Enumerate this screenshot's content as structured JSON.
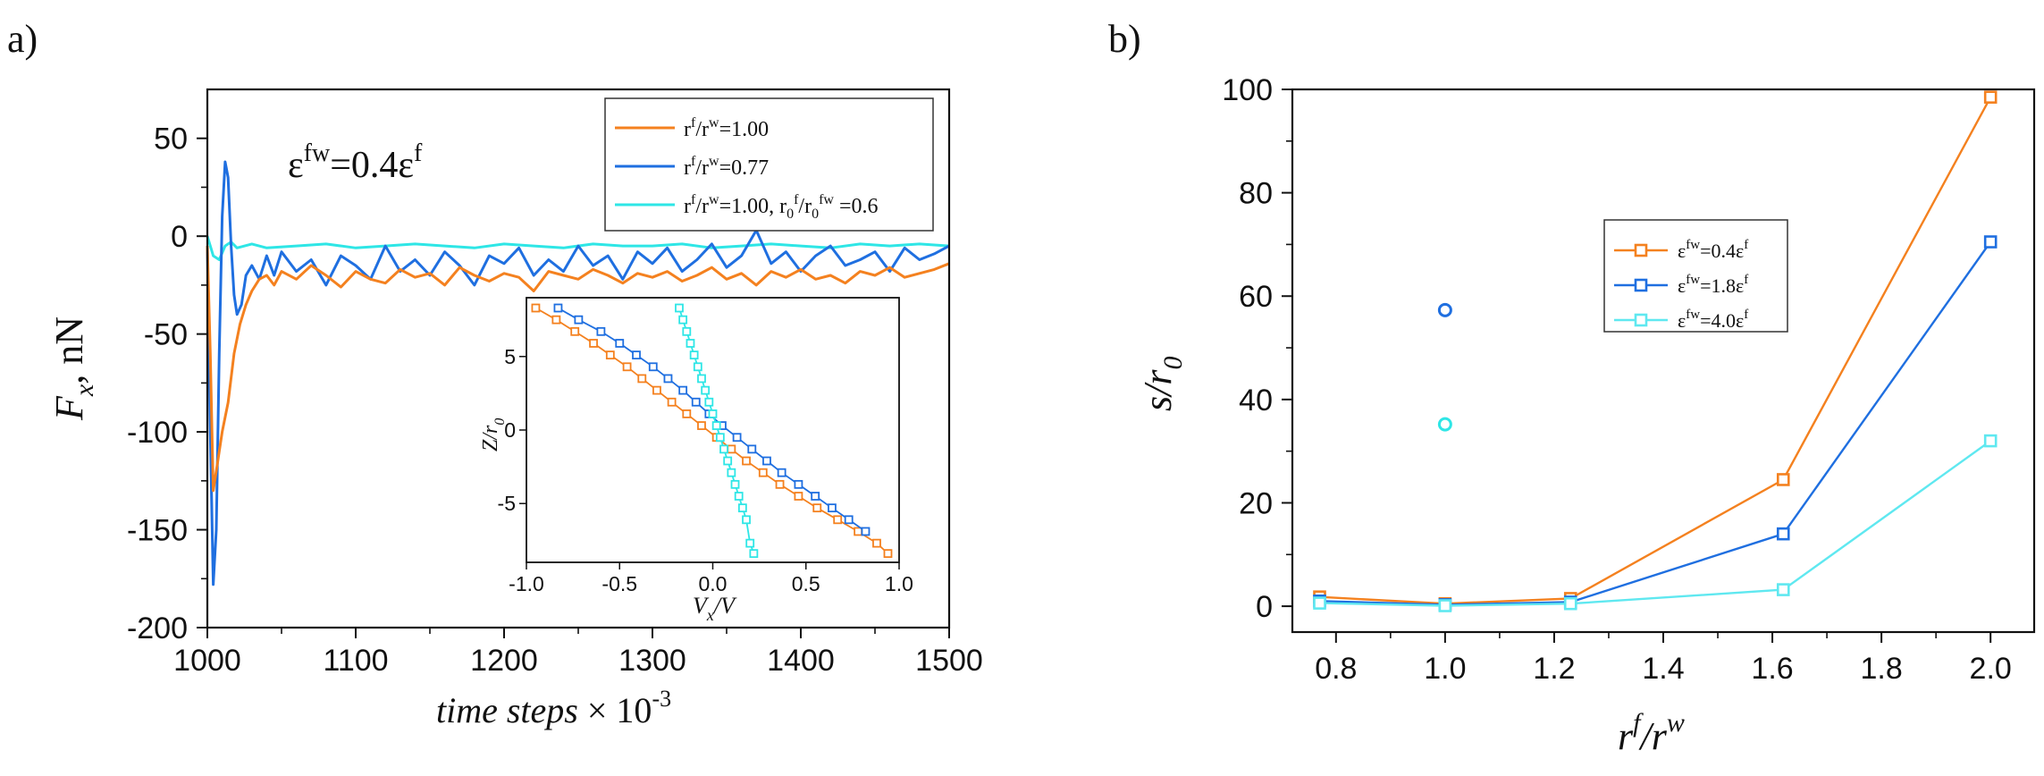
{
  "panel_labels": {
    "a": "a)",
    "b": "b)"
  },
  "chart_data": [
    {
      "id": "a",
      "type": "line",
      "annotation": "ε^fw=0.4ε^f",
      "annotation_parts": {
        "eps": "ε",
        "sup1": "fw",
        "mid": "=0.4ε",
        "sup2": "f"
      },
      "xlabel": "time steps × 10^-3",
      "xlabel_parts": {
        "main": "time steps",
        "times": " × 10",
        "sup": "-3"
      },
      "ylabel": "F_x, nN",
      "ylabel_parts": {
        "F": "F",
        "sub": "x",
        "rest": ", nN"
      },
      "xlim": [
        1000,
        1500
      ],
      "ylim": [
        -200,
        75
      ],
      "xticks": [
        "1000",
        "1100",
        "1200",
        "1300",
        "1400",
        "1500"
      ],
      "yticks": [
        "50",
        "0",
        "-50",
        "-100",
        "-150",
        "-200"
      ],
      "legend": [
        {
          "label": "r^f/r^w=1.00",
          "parts": {
            "a": "r",
            "b": "f",
            "c": "/r",
            "d": "w",
            "e": "=1.00"
          },
          "color": "#f4811f"
        },
        {
          "label": "r^f/r^w=0.77",
          "parts": {
            "a": "r",
            "b": "f",
            "c": "/r",
            "d": "w",
            "e": "=0.77"
          },
          "color": "#1f6fe0"
        },
        {
          "label": "r^f/r^w=1.00, r_0^f/r_0^fw=0.6",
          "parts": {
            "a": "r",
            "b": "f",
            "c": "/r",
            "d": "w",
            "e": "=1.00, r",
            "f": "0",
            "g": "f",
            "h": "/r",
            "i": "0",
            "j": "fw",
            "k": " =0.6"
          },
          "color": "#2ee6e6"
        }
      ],
      "series": [
        {
          "name": "orange",
          "color": "#f4811f",
          "x": [
            1000,
            1002,
            1004,
            1006,
            1008,
            1010,
            1014,
            1018,
            1022,
            1026,
            1030,
            1035,
            1040,
            1045,
            1050,
            1060,
            1070,
            1080,
            1090,
            1100,
            1110,
            1120,
            1130,
            1140,
            1150,
            1160,
            1170,
            1180,
            1190,
            1200,
            1210,
            1220,
            1230,
            1240,
            1250,
            1260,
            1270,
            1280,
            1290,
            1300,
            1310,
            1320,
            1330,
            1340,
            1350,
            1360,
            1370,
            1380,
            1390,
            1400,
            1410,
            1420,
            1430,
            1440,
            1450,
            1460,
            1470,
            1480,
            1490,
            1500
          ],
          "y": [
            -5,
            -60,
            -130,
            -120,
            -110,
            -100,
            -85,
            -60,
            -45,
            -35,
            -28,
            -22,
            -20,
            -25,
            -18,
            -22,
            -15,
            -20,
            -26,
            -18,
            -22,
            -24,
            -17,
            -21,
            -19,
            -25,
            -16,
            -20,
            -23,
            -19,
            -21,
            -28,
            -18,
            -20,
            -22,
            -17,
            -20,
            -24,
            -19,
            -21,
            -18,
            -23,
            -20,
            -16,
            -22,
            -19,
            -25,
            -18,
            -21,
            -17,
            -22,
            -20,
            -24,
            -18,
            -20,
            -16,
            -21,
            -19,
            -17,
            -14
          ]
        },
        {
          "name": "blue",
          "color": "#1f6fe0",
          "x": [
            1000,
            1002,
            1004,
            1006,
            1008,
            1010,
            1012,
            1014,
            1016,
            1018,
            1020,
            1023,
            1026,
            1030,
            1035,
            1040,
            1045,
            1050,
            1060,
            1070,
            1080,
            1090,
            1100,
            1110,
            1120,
            1130,
            1140,
            1150,
            1160,
            1170,
            1180,
            1190,
            1200,
            1210,
            1220,
            1230,
            1240,
            1250,
            1260,
            1270,
            1280,
            1290,
            1300,
            1310,
            1320,
            1330,
            1340,
            1350,
            1360,
            1370,
            1380,
            1390,
            1400,
            1410,
            1420,
            1430,
            1440,
            1450,
            1460,
            1470,
            1480,
            1490,
            1500
          ],
          "y": [
            -5,
            -100,
            -178,
            -150,
            -60,
            10,
            38,
            30,
            -5,
            -30,
            -40,
            -35,
            -20,
            -15,
            -22,
            -10,
            -20,
            -8,
            -18,
            -12,
            -25,
            -10,
            -15,
            -22,
            -5,
            -18,
            -12,
            -20,
            -8,
            -15,
            -25,
            -10,
            -14,
            -6,
            -20,
            -12,
            -18,
            -5,
            -15,
            -10,
            -22,
            -8,
            -14,
            -6,
            -18,
            -12,
            -4,
            -16,
            -10,
            3,
            -14,
            -8,
            -18,
            -10,
            -5,
            -15,
            -12,
            -8,
            -18,
            -6,
            -12,
            -9,
            -5
          ]
        },
        {
          "name": "cyan",
          "color": "#2ee6e6",
          "x": [
            1000,
            1004,
            1008,
            1012,
            1016,
            1020,
            1030,
            1040,
            1060,
            1080,
            1100,
            1120,
            1140,
            1160,
            1180,
            1200,
            1220,
            1240,
            1260,
            1280,
            1300,
            1320,
            1340,
            1360,
            1380,
            1400,
            1420,
            1440,
            1460,
            1480,
            1500
          ],
          "y": [
            0,
            -10,
            -12,
            -5,
            -3,
            -6,
            -4,
            -6,
            -5,
            -4,
            -6,
            -5,
            -4,
            -5,
            -6,
            -4,
            -5,
            -6,
            -4,
            -5,
            -5,
            -4,
            -6,
            -5,
            -4,
            -5,
            -6,
            -4,
            -5,
            -4,
            -5
          ]
        }
      ]
    },
    {
      "id": "a-inset",
      "type": "line",
      "xlabel": "V_x/V",
      "xlabel_parts": {
        "V": "V",
        "sub": "x",
        "rest": "/V"
      },
      "ylabel": "Z/r_0",
      "ylabel_parts": {
        "Z": "Z/r",
        "sub": "0"
      },
      "xlim": [
        -1.0,
        1.0
      ],
      "ylim": [
        -9,
        9
      ],
      "xticks": [
        "-1.0",
        "-0.5",
        "0.0",
        "0.5",
        "1.0"
      ],
      "yticks": [
        "5",
        "0",
        "-5"
      ],
      "series": [
        {
          "name": "orange",
          "color": "#f4811f",
          "x": [
            -0.95,
            -0.84,
            -0.74,
            -0.64,
            -0.55,
            -0.46,
            -0.38,
            -0.3,
            -0.22,
            -0.14,
            -0.06,
            0.02,
            0.1,
            0.18,
            0.27,
            0.36,
            0.46,
            0.56,
            0.67,
            0.78,
            0.88,
            0.94
          ],
          "y": [
            8.3,
            7.5,
            6.7,
            5.9,
            5.1,
            4.3,
            3.5,
            2.7,
            1.9,
            1.1,
            0.3,
            -0.5,
            -1.3,
            -2.1,
            -2.9,
            -3.7,
            -4.5,
            -5.3,
            -6.1,
            -6.9,
            -7.7,
            -8.4
          ]
        },
        {
          "name": "blue",
          "color": "#1f6fe0",
          "x": [
            -0.83,
            -0.72,
            -0.6,
            -0.5,
            -0.41,
            -0.32,
            -0.24,
            -0.16,
            -0.09,
            -0.02,
            0.05,
            0.13,
            0.21,
            0.29,
            0.37,
            0.46,
            0.55,
            0.64,
            0.73,
            0.82
          ],
          "y": [
            8.3,
            7.5,
            6.7,
            5.9,
            5.1,
            4.3,
            3.5,
            2.7,
            1.9,
            1.1,
            0.3,
            -0.5,
            -1.3,
            -2.1,
            -2.9,
            -3.7,
            -4.5,
            -5.3,
            -6.1,
            -6.9
          ]
        },
        {
          "name": "cyan",
          "color": "#2ee6e6",
          "x": [
            -0.18,
            -0.16,
            -0.14,
            -0.12,
            -0.1,
            -0.08,
            -0.06,
            -0.04,
            -0.02,
            0.0,
            0.02,
            0.04,
            0.06,
            0.08,
            0.1,
            0.12,
            0.14,
            0.16,
            0.18,
            0.2,
            0.22
          ],
          "y": [
            8.3,
            7.5,
            6.7,
            5.9,
            5.1,
            4.3,
            3.5,
            2.7,
            1.9,
            1.1,
            0.3,
            -0.5,
            -1.3,
            -2.1,
            -2.9,
            -3.7,
            -4.5,
            -5.3,
            -6.1,
            -7.7,
            -8.4
          ]
        }
      ]
    },
    {
      "id": "b",
      "type": "line",
      "xlabel": "r^f/r^w",
      "xlabel_parts": {
        "a": "r",
        "b": "f",
        "c": "/r",
        "d": "w"
      },
      "ylabel": "s/r_0",
      "ylabel_parts": {
        "s": "s/r",
        "sub": "0"
      },
      "xlim": [
        0.72,
        2.08
      ],
      "ylim": [
        -5,
        100
      ],
      "xticks": [
        "0.8",
        "1.0",
        "1.2",
        "1.4",
        "1.6",
        "1.8",
        "2.0"
      ],
      "yticks": [
        "100",
        "80",
        "60",
        "40",
        "20",
        "0"
      ],
      "legend": [
        {
          "label": "ε^fw=0.4ε^f",
          "parts": {
            "a": "ε",
            "b": "fw",
            "c": "=0.4ε",
            "d": "f"
          },
          "color": "#f4811f"
        },
        {
          "label": "ε^fw=1.8ε^f",
          "parts": {
            "a": "ε",
            "b": "fw",
            "c": "=1.8ε",
            "d": "f"
          },
          "color": "#1f6fe0"
        },
        {
          "label": "ε^fw=4.0ε^f",
          "parts": {
            "a": "ε",
            "b": "fw",
            "c": "=4.0ε",
            "d": "f"
          },
          "color": "#5fe8f0"
        }
      ],
      "series": [
        {
          "name": "0.4",
          "color": "#f4811f",
          "x": [
            0.77,
            1.0,
            1.23,
            1.62,
            2.0
          ],
          "y": [
            1.8,
            0.5,
            1.5,
            24.5,
            98.5
          ]
        },
        {
          "name": "1.8",
          "color": "#1f6fe0",
          "x": [
            0.77,
            1.0,
            1.23,
            1.62,
            2.0
          ],
          "y": [
            1.0,
            0.3,
            0.8,
            14.0,
            70.5
          ]
        },
        {
          "name": "4.0",
          "color": "#5fe8f0",
          "x": [
            0.77,
            1.0,
            1.23,
            1.62,
            2.0
          ],
          "y": [
            0.6,
            0.1,
            0.5,
            3.2,
            32.0
          ]
        }
      ],
      "extra_points": [
        {
          "x": 1.0,
          "y": 57.3,
          "color": "#1f6fe0"
        },
        {
          "x": 1.0,
          "y": 35.2,
          "color": "#2ee6e6"
        }
      ]
    }
  ]
}
